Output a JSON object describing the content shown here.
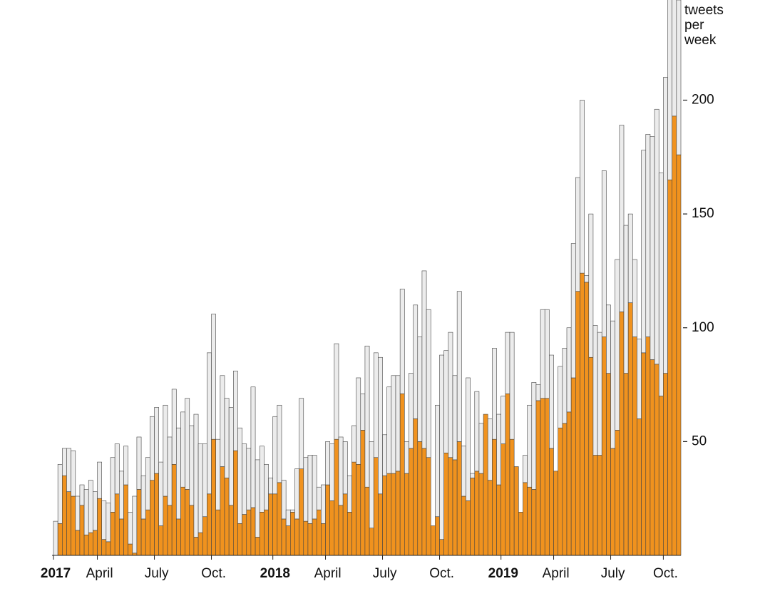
{
  "chart_data": {
    "type": "stacked_bar",
    "y_label": "tweets per week",
    "categories": [
      "2017",
      null,
      null,
      null,
      null,
      null,
      null,
      null,
      null,
      null,
      "April",
      null,
      null,
      null,
      null,
      null,
      null,
      null,
      null,
      null,
      null,
      null,
      null,
      "July",
      null,
      null,
      null,
      null,
      null,
      null,
      null,
      null,
      null,
      null,
      null,
      null,
      "Oct.",
      null,
      null,
      null,
      null,
      null,
      null,
      null,
      null,
      null,
      null,
      null,
      null,
      null,
      "2018",
      null,
      null,
      null,
      null,
      null,
      null,
      null,
      null,
      null,
      null,
      null,
      "April",
      null,
      null,
      null,
      null,
      null,
      null,
      null,
      null,
      null,
      null,
      null,
      null,
      "July",
      null,
      null,
      null,
      null,
      null,
      null,
      null,
      null,
      null,
      null,
      null,
      null,
      "Oct.",
      null,
      null,
      null,
      null,
      null,
      null,
      null,
      null,
      null,
      null,
      null,
      null,
      null,
      "2019",
      null,
      null,
      null,
      null,
      null,
      null,
      null,
      null,
      null,
      null,
      null,
      "April",
      null,
      null,
      null,
      null,
      null,
      null,
      null,
      null,
      null,
      null,
      null,
      null,
      "July",
      null,
      null,
      null,
      null,
      null,
      null,
      null,
      null,
      null,
      null,
      null,
      "Oct.",
      null,
      null,
      null
    ],
    "series": [
      {
        "color": "#f0921e",
        "values": [
          0,
          14,
          35,
          28,
          26,
          11,
          22,
          9,
          10,
          11,
          25,
          7,
          6,
          19,
          27,
          16,
          31,
          5,
          1,
          29,
          16,
          20,
          33,
          36,
          13,
          26,
          22,
          40,
          16,
          30,
          29,
          22,
          8,
          10,
          17,
          27,
          51,
          20,
          39,
          34,
          22,
          46,
          14,
          18,
          20,
          21,
          8,
          19,
          20,
          27,
          27,
          32,
          16,
          13,
          19,
          16,
          38,
          15,
          14,
          16,
          20,
          14,
          31,
          24,
          51,
          22,
          27,
          19,
          41,
          40,
          55,
          30,
          12,
          43,
          27,
          35,
          36,
          36,
          37,
          71,
          36,
          47,
          60,
          50,
          47,
          43,
          13,
          17,
          7,
          45,
          43,
          42,
          50,
          26,
          24,
          34,
          37,
          36,
          62,
          33,
          51,
          31,
          49,
          71,
          51,
          39,
          19,
          32,
          30,
          29,
          68,
          69,
          69,
          47,
          37,
          56,
          58,
          63,
          78,
          116,
          124,
          120,
          87,
          44,
          44,
          96,
          80,
          47,
          55,
          107,
          80,
          111,
          96,
          60,
          89,
          96,
          86,
          84,
          70,
          80,
          165,
          193,
          176
        ]
      },
      {
        "color": "#ececec",
        "values": [
          15,
          26,
          12,
          19,
          20,
          15,
          9,
          20,
          23,
          17,
          16,
          17,
          17,
          24,
          22,
          21,
          17,
          14,
          25,
          23,
          19,
          23,
          28,
          29,
          28,
          40,
          30,
          33,
          40,
          33,
          40,
          35,
          54,
          39,
          32,
          62,
          55,
          31,
          40,
          35,
          43,
          35,
          42,
          31,
          27,
          53,
          34,
          29,
          20,
          7,
          34,
          34,
          17,
          7,
          1,
          22,
          31,
          28,
          30,
          28,
          10,
          17,
          19,
          25,
          42,
          30,
          23,
          16,
          16,
          38,
          16,
          62,
          38,
          46,
          60,
          18,
          38,
          43,
          42,
          46,
          14,
          33,
          50,
          46,
          78,
          65,
          0,
          49,
          81,
          45,
          55,
          37,
          66,
          22,
          54,
          2,
          35,
          22,
          0,
          27,
          40,
          31,
          21,
          27,
          47,
          0,
          0,
          12,
          36,
          47,
          7,
          39,
          39,
          41,
          0,
          27,
          33,
          37,
          59,
          50,
          76,
          3,
          63,
          57,
          54,
          73,
          30,
          56,
          75,
          82,
          65,
          39,
          34,
          35,
          89,
          89,
          98,
          112,
          98,
          130,
          80,
          57,
          68
        ]
      }
    ],
    "ylim": [
      0,
      244
    ],
    "yticks": [
      50,
      100,
      150,
      200
    ],
    "y_axis_side": "right",
    "grid": false
  }
}
